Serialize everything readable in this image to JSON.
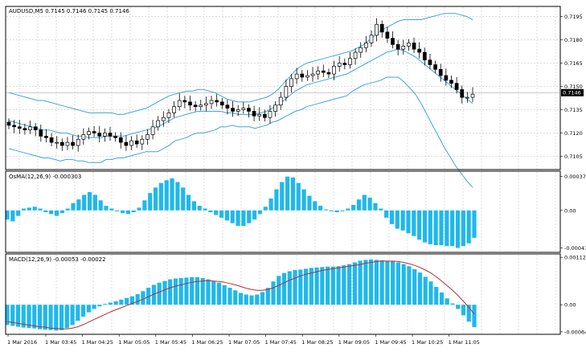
{
  "window": {
    "header": "AUDUSD,M5  0.7145 0.7146 0.7145 0.7146"
  },
  "colors": {
    "background": "#ffffff",
    "grid": "#c8c8c8",
    "border": "#000000",
    "candle": "#000000",
    "bands": "#3fa7d6",
    "histogram": "#1fb8ec",
    "signal": "#b03030",
    "price_tag_bg": "#000000",
    "price_tag_fg": "#ffffff"
  },
  "price_panel": {
    "title": "AUDUSD,M5  0.7145 0.7146 0.7145 0.7146",
    "ticks": [
      "0.7195",
      "0.7180",
      "0.7165",
      "0.7150",
      "0.7135",
      "0.7120",
      "0.7105"
    ],
    "current_price": "0.7146",
    "ylim": [
      0.7097,
      0.7201
    ]
  },
  "osma_panel": {
    "title": "OsMA(12,26,9) -0.000303",
    "ticks": [
      "0.00037",
      "0.00",
      "-0.00041"
    ],
    "ylim": [
      -0.00045,
      0.00042
    ]
  },
  "macd_panel": {
    "title": "MACD(12,26,9) -0.00053 -0.00022",
    "ticks": [
      "0.00112",
      "0.00",
      "-0.00064"
    ],
    "ylim": [
      -0.00068,
      0.00118
    ]
  },
  "time_axis": {
    "labels": [
      "1 Mar 2016",
      "1 Mar 03:45",
      "1 Mar 04:25",
      "1 Mar 05:05",
      "1 Mar 05:45",
      "1 Mar 06:25",
      "1 Mar 07:05",
      "1 Mar 07:45",
      "1 Mar 08:25",
      "1 Mar 09:05",
      "1 Mar 09:45",
      "1 Mar 10:25",
      "1 Mar 11:05"
    ]
  },
  "chart_data": [
    {
      "type": "candlestick",
      "title": "AUDUSD,M5  0.7145 0.7146 0.7145 0.7146",
      "close": [
        0.7125,
        0.7124,
        0.7123,
        0.7122,
        0.7124,
        0.7122,
        0.7118,
        0.7117,
        0.7114,
        0.7114,
        0.7112,
        0.7114,
        0.7112,
        0.7116,
        0.7119,
        0.7121,
        0.712,
        0.7118,
        0.712,
        0.7118,
        0.7117,
        0.7114,
        0.7112,
        0.7115,
        0.7113,
        0.7116,
        0.7119,
        0.7124,
        0.7128,
        0.713,
        0.7133,
        0.7137,
        0.7141,
        0.714,
        0.7138,
        0.7137,
        0.7138,
        0.7139,
        0.7141,
        0.714,
        0.7138,
        0.7136,
        0.7134,
        0.7135,
        0.7136,
        0.7134,
        0.7131,
        0.7132,
        0.713,
        0.7134,
        0.7138,
        0.7143,
        0.715,
        0.7155,
        0.7158,
        0.7156,
        0.7157,
        0.7158,
        0.716,
        0.7159,
        0.7158,
        0.7163,
        0.7165,
        0.7164,
        0.7168,
        0.7172,
        0.7175,
        0.7178,
        0.7183,
        0.719,
        0.7185,
        0.7181,
        0.7177,
        0.7174,
        0.7176,
        0.7178,
        0.7174,
        0.7172,
        0.7167,
        0.7164,
        0.7161,
        0.7157,
        0.7154,
        0.7152,
        0.7148,
        0.7143,
        0.7143,
        0.7145
      ],
      "high_low_note": "",
      "bands_upper": [
        0.7146,
        0.7145,
        0.7144,
        0.7143,
        0.7142,
        0.7141,
        0.7141,
        0.714,
        0.7139,
        0.7138,
        0.7137,
        0.7136,
        0.7135,
        0.7134,
        0.7133,
        0.7133,
        0.7133,
        0.7133,
        0.7133,
        0.7132,
        0.7132,
        0.7133,
        0.7134,
        0.7135,
        0.7136,
        0.7138,
        0.714,
        0.7142,
        0.7144,
        0.7145,
        0.7146,
        0.7147,
        0.7147,
        0.7148,
        0.7148,
        0.7147,
        0.7146,
        0.7144,
        0.7142,
        0.7141,
        0.714,
        0.714,
        0.714,
        0.7141,
        0.7142,
        0.7143,
        0.7145,
        0.7148,
        0.7152,
        0.7156,
        0.716,
        0.7163,
        0.7165,
        0.7166,
        0.7167,
        0.7168,
        0.7169,
        0.717,
        0.7171,
        0.7172,
        0.7173,
        0.7175,
        0.7177,
        0.718,
        0.7183,
        0.7186,
        0.7188,
        0.719,
        0.7192,
        0.7193,
        0.7193,
        0.7193,
        0.7193,
        0.7194,
        0.7195,
        0.7196,
        0.7197,
        0.7197,
        0.7197,
        0.7196,
        0.7195,
        0.7193
      ],
      "bands_middle": [
        0.7128,
        0.7127,
        0.7126,
        0.7125,
        0.7124,
        0.7123,
        0.7122,
        0.7122,
        0.7121,
        0.712,
        0.712,
        0.7119,
        0.7118,
        0.7118,
        0.7117,
        0.7117,
        0.7117,
        0.7118,
        0.7118,
        0.7118,
        0.7118,
        0.7119,
        0.712,
        0.7121,
        0.7122,
        0.7123,
        0.7124,
        0.7126,
        0.7128,
        0.713,
        0.7131,
        0.7132,
        0.7133,
        0.7134,
        0.7134,
        0.7134,
        0.7134,
        0.7134,
        0.7133,
        0.7133,
        0.7132,
        0.7132,
        0.7132,
        0.7132,
        0.7133,
        0.7134,
        0.7136,
        0.7138,
        0.7141,
        0.7144,
        0.7147,
        0.7149,
        0.7151,
        0.7152,
        0.7153,
        0.7154,
        0.7155,
        0.7156,
        0.7157,
        0.7158,
        0.716,
        0.7162,
        0.7164,
        0.7166,
        0.7168,
        0.717,
        0.7172,
        0.7173,
        0.7174,
        0.7173,
        0.7171,
        0.7169,
        0.7166,
        0.7163,
        0.716,
        0.7157,
        0.7154,
        0.7151,
        0.7148,
        0.7145,
        0.7142,
        0.7139
      ],
      "bands_lower": [
        0.711,
        0.7109,
        0.7108,
        0.7107,
        0.7106,
        0.7105,
        0.7104,
        0.7104,
        0.7103,
        0.7102,
        0.7103,
        0.7103,
        0.7102,
        0.7102,
        0.7101,
        0.7101,
        0.7101,
        0.7103,
        0.7103,
        0.7104,
        0.7104,
        0.7105,
        0.7106,
        0.7107,
        0.7108,
        0.7108,
        0.7108,
        0.711,
        0.7112,
        0.7115,
        0.7116,
        0.7117,
        0.7119,
        0.712,
        0.712,
        0.7121,
        0.7122,
        0.7124,
        0.7124,
        0.7125,
        0.7124,
        0.7124,
        0.7124,
        0.7123,
        0.7124,
        0.7125,
        0.7127,
        0.7128,
        0.713,
        0.7132,
        0.7134,
        0.7135,
        0.7137,
        0.7138,
        0.7139,
        0.714,
        0.7141,
        0.7142,
        0.7143,
        0.7144,
        0.7147,
        0.7149,
        0.7151,
        0.7152,
        0.7153,
        0.7154,
        0.7156,
        0.7156,
        0.7156,
        0.7153,
        0.7149,
        0.7145,
        0.7139,
        0.7132,
        0.7125,
        0.7118,
        0.7111,
        0.7105,
        0.7099,
        0.7094,
        0.7089,
        0.7085
      ]
    },
    {
      "type": "bar",
      "title": "OsMA(12,26,9) -0.000303",
      "values": [
        -0.0001,
        -0.00012,
        -6e-05,
        2e-05,
        3e-05,
        4e-05,
        2e-05,
        -2e-05,
        -4e-05,
        -6e-05,
        -3e-05,
        2e-05,
        8e-05,
        0.00012,
        0.00017,
        0.0002,
        0.00017,
        0.00011,
        5e-05,
        2e-05,
        -1e-05,
        -3e-05,
        -4e-05,
        -2e-05,
        3e-05,
        0.00011,
        0.00019,
        0.00025,
        0.0003,
        0.00033,
        0.00035,
        0.00031,
        0.00025,
        0.00017,
        0.0001,
        5e-05,
        2e-05,
        -2e-05,
        -5e-05,
        -8e-05,
        -0.00011,
        -0.00014,
        -0.00017,
        -0.00017,
        -0.00014,
        -0.0001,
        -4e-05,
        4e-05,
        0.00013,
        0.00023,
        0.00031,
        0.00037,
        0.00036,
        0.0003,
        0.00023,
        0.00016,
        0.0001,
        5e-05,
        1e-05,
        -1e-05,
        -2e-05,
        -1e-05,
        2e-05,
        6e-05,
        0.00012,
        0.00017,
        0.00014,
        8e-05,
        2e-05,
        -8e-05,
        -0.00015,
        -0.0002,
        -0.00022,
        -0.00025,
        -0.00028,
        -0.00032,
        -0.00035,
        -0.00037,
        -0.00038,
        -0.00038,
        -0.00039,
        -0.00039,
        -0.00041,
        -0.00039,
        -0.00036,
        -0.0003
      ]
    },
    {
      "type": "bar",
      "title": "MACD(12,26,9) -0.00053 -0.00022",
      "values": [
        -0.00048,
        -0.0005,
        -0.00052,
        -0.00054,
        -0.00055,
        -0.00056,
        -0.00058,
        -0.00059,
        -0.0006,
        -0.00061,
        -0.0006,
        -0.00055,
        -0.00048,
        -0.00038,
        -0.00028,
        -0.00018,
        -0.0001,
        -4e-05,
        2e-05,
        5e-05,
        8e-05,
        0.00012,
        0.00016,
        0.0002,
        0.00025,
        0.00032,
        0.0004,
        0.00047,
        0.00052,
        0.00056,
        0.0006,
        0.00062,
        0.00063,
        0.00064,
        0.00065,
        0.00065,
        0.00063,
        0.0006,
        0.00056,
        0.00052,
        0.00046,
        0.0004,
        0.00034,
        0.00028,
        0.00024,
        0.00022,
        0.00024,
        0.0003,
        0.0004,
        0.00055,
        0.00068,
        0.00075,
        0.00079,
        0.00082,
        0.00083,
        0.00085,
        0.00087,
        0.00088,
        0.00089,
        0.0009,
        0.0009,
        0.00091,
        0.00093,
        0.00096,
        0.001,
        0.00104,
        0.00106,
        0.00107,
        0.00106,
        0.00105,
        0.00104,
        0.00103,
        0.001,
        0.00096,
        0.00091,
        0.00084,
        0.00076,
        0.00066,
        0.00055,
        0.00042,
        0.00029,
        0.00015,
        3e-05,
        -0.0001,
        -0.00025,
        -0.0004,
        -0.00053
      ],
      "signal": [
        -0.0004,
        -0.00042,
        -0.00044,
        -0.00046,
        -0.00048,
        -0.0005,
        -0.00052,
        -0.00053,
        -0.00055,
        -0.00056,
        -0.00057,
        -0.00057,
        -0.00055,
        -0.00052,
        -0.00047,
        -0.00041,
        -0.00035,
        -0.00029,
        -0.00023,
        -0.00017,
        -0.00012,
        -7e-05,
        -2e-05,
        3e-05,
        8e-05,
        0.00013,
        0.00019,
        0.00025,
        0.0003,
        0.00035,
        0.0004,
        0.00044,
        0.00047,
        0.0005,
        0.00053,
        0.00055,
        0.00056,
        0.00057,
        0.00056,
        0.00055,
        0.00053,
        0.0005,
        0.00047,
        0.00043,
        0.00039,
        0.00036,
        0.00034,
        0.00034,
        0.00036,
        0.0004,
        0.00046,
        0.00052,
        0.00058,
        0.00063,
        0.00068,
        0.00072,
        0.00075,
        0.00078,
        0.00081,
        0.00083,
        0.00085,
        0.00087,
        0.00089,
        0.00091,
        0.00093,
        0.00095,
        0.00098,
        0.001,
        0.00102,
        0.00103,
        0.00103,
        0.00103,
        0.00102,
        0.001,
        0.00097,
        0.00093,
        0.00088,
        0.00082,
        0.00075,
        0.00066,
        0.00056,
        0.00045,
        0.00034,
        0.00022,
        8e-05,
        -6e-05,
        -0.00022
      ]
    }
  ]
}
